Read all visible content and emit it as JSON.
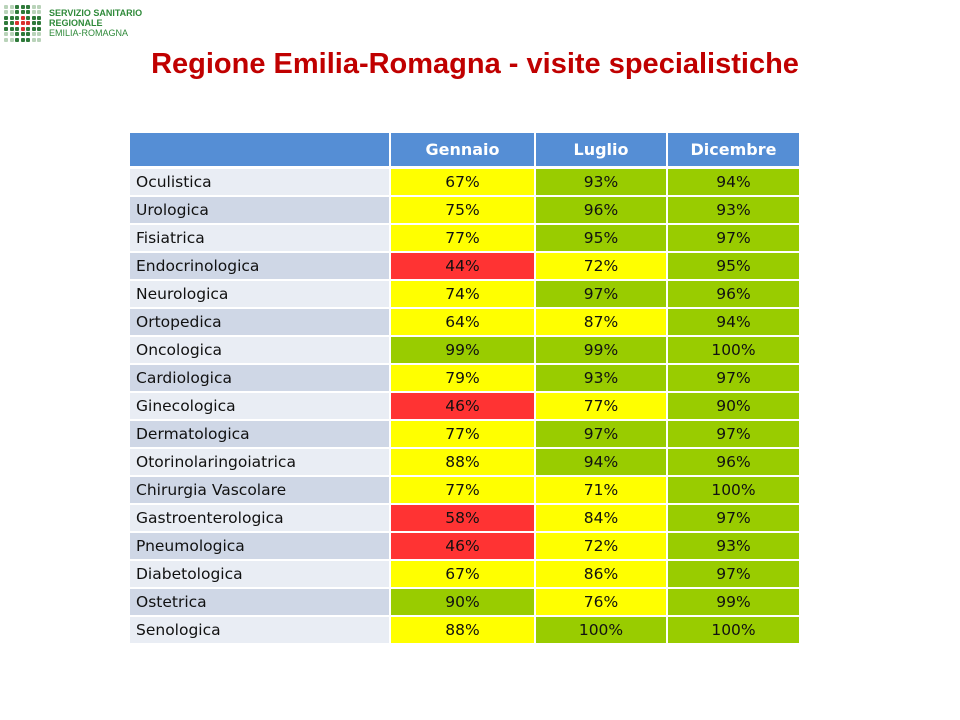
{
  "logo": {
    "line1": "SERVIZIO SANITARIO REGIONALE",
    "line2": "EMILIA-ROMAGNA"
  },
  "title": "Regione Emilia-Romagna - visite specialistiche",
  "table": {
    "columns": [
      "",
      "Gennaio",
      "Luglio",
      "Dicembre"
    ],
    "thresholds": {
      "red_below": 60,
      "green_from": 90
    },
    "colors": {
      "red": "#ff3333",
      "yellow": "#ffff00",
      "green": "#99cc00",
      "header": "#558ed5",
      "title": "#c00000"
    },
    "rows": [
      {
        "label": "Oculistica",
        "values": [
          "67%",
          "93%",
          "94%"
        ]
      },
      {
        "label": "Urologica",
        "values": [
          "75%",
          "96%",
          "93%"
        ]
      },
      {
        "label": "Fisiatrica",
        "values": [
          "77%",
          "95%",
          "97%"
        ]
      },
      {
        "label": "Endocrinologica",
        "values": [
          "44%",
          "72%",
          "95%"
        ]
      },
      {
        "label": "Neurologica",
        "values": [
          "74%",
          "97%",
          "96%"
        ]
      },
      {
        "label": "Ortopedica",
        "values": [
          "64%",
          "87%",
          "94%"
        ]
      },
      {
        "label": "Oncologica",
        "values": [
          "99%",
          "99%",
          "100%"
        ]
      },
      {
        "label": "Cardiologica",
        "values": [
          "79%",
          "93%",
          "97%"
        ]
      },
      {
        "label": "Ginecologica",
        "values": [
          "46%",
          "77%",
          "90%"
        ]
      },
      {
        "label": "Dermatologica",
        "values": [
          "77%",
          "97%",
          "97%"
        ]
      },
      {
        "label": "Otorinolaringoiatrica",
        "values": [
          "88%",
          "94%",
          "96%"
        ]
      },
      {
        "label": "Chirurgia Vascolare",
        "values": [
          "77%",
          "71%",
          "100%"
        ]
      },
      {
        "label": "Gastroenterologica",
        "values": [
          "58%",
          "84%",
          "97%"
        ]
      },
      {
        "label": "Pneumologica",
        "values": [
          "46%",
          "72%",
          "93%"
        ]
      },
      {
        "label": "Diabetologica",
        "values": [
          "67%",
          "86%",
          "97%"
        ]
      },
      {
        "label": "Ostetrica",
        "values": [
          "90%",
          "76%",
          "99%"
        ]
      },
      {
        "label": "Senologica",
        "values": [
          "88%",
          "100%",
          "100%"
        ]
      }
    ]
  }
}
